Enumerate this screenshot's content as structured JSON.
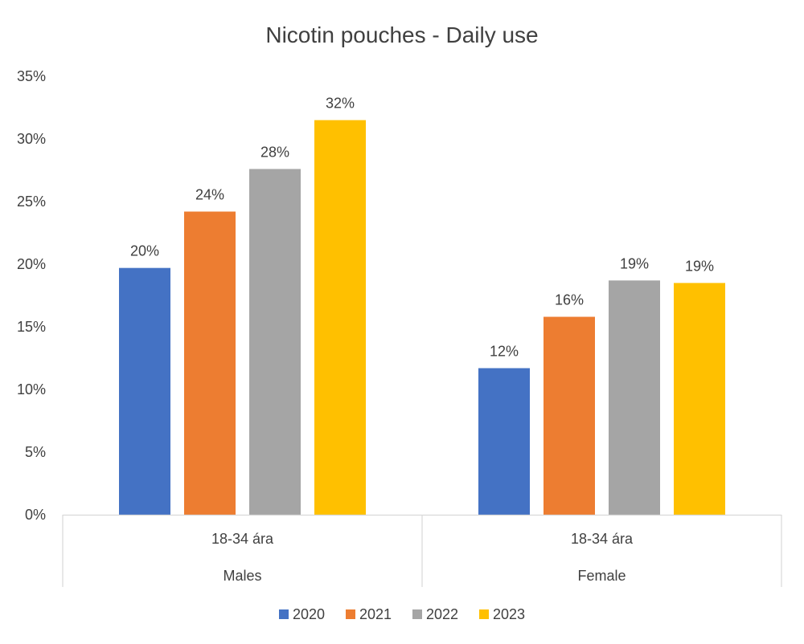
{
  "chart_data": {
    "type": "bar",
    "title": "Nicotin pouches - Daily use",
    "xlabel": "",
    "ylabel": "",
    "ylim": [
      0,
      35
    ],
    "y_ticks": [
      "0%",
      "5%",
      "10%",
      "15%",
      "20%",
      "25%",
      "30%",
      "35%"
    ],
    "y_tick_values": [
      0,
      5,
      10,
      15,
      20,
      25,
      30,
      35
    ],
    "grid": false,
    "legend_position": "bottom",
    "categories": [
      {
        "sub": "18-34 ára",
        "group": "Males"
      },
      {
        "sub": "18-34 ára",
        "group": "Female"
      }
    ],
    "series": [
      {
        "name": "2020",
        "color": "#4472C4",
        "values": [
          19.7,
          11.7
        ],
        "labels": [
          "20%",
          "12%"
        ]
      },
      {
        "name": "2021",
        "color": "#ED7D31",
        "values": [
          24.2,
          15.8
        ],
        "labels": [
          "24%",
          "16%"
        ]
      },
      {
        "name": "2022",
        "color": "#A5A5A5",
        "values": [
          27.6,
          18.7
        ],
        "labels": [
          "28%",
          "19%"
        ]
      },
      {
        "name": "2023",
        "color": "#FFC000",
        "values": [
          31.5,
          18.5
        ],
        "labels": [
          "32%",
          "19%"
        ]
      }
    ]
  }
}
